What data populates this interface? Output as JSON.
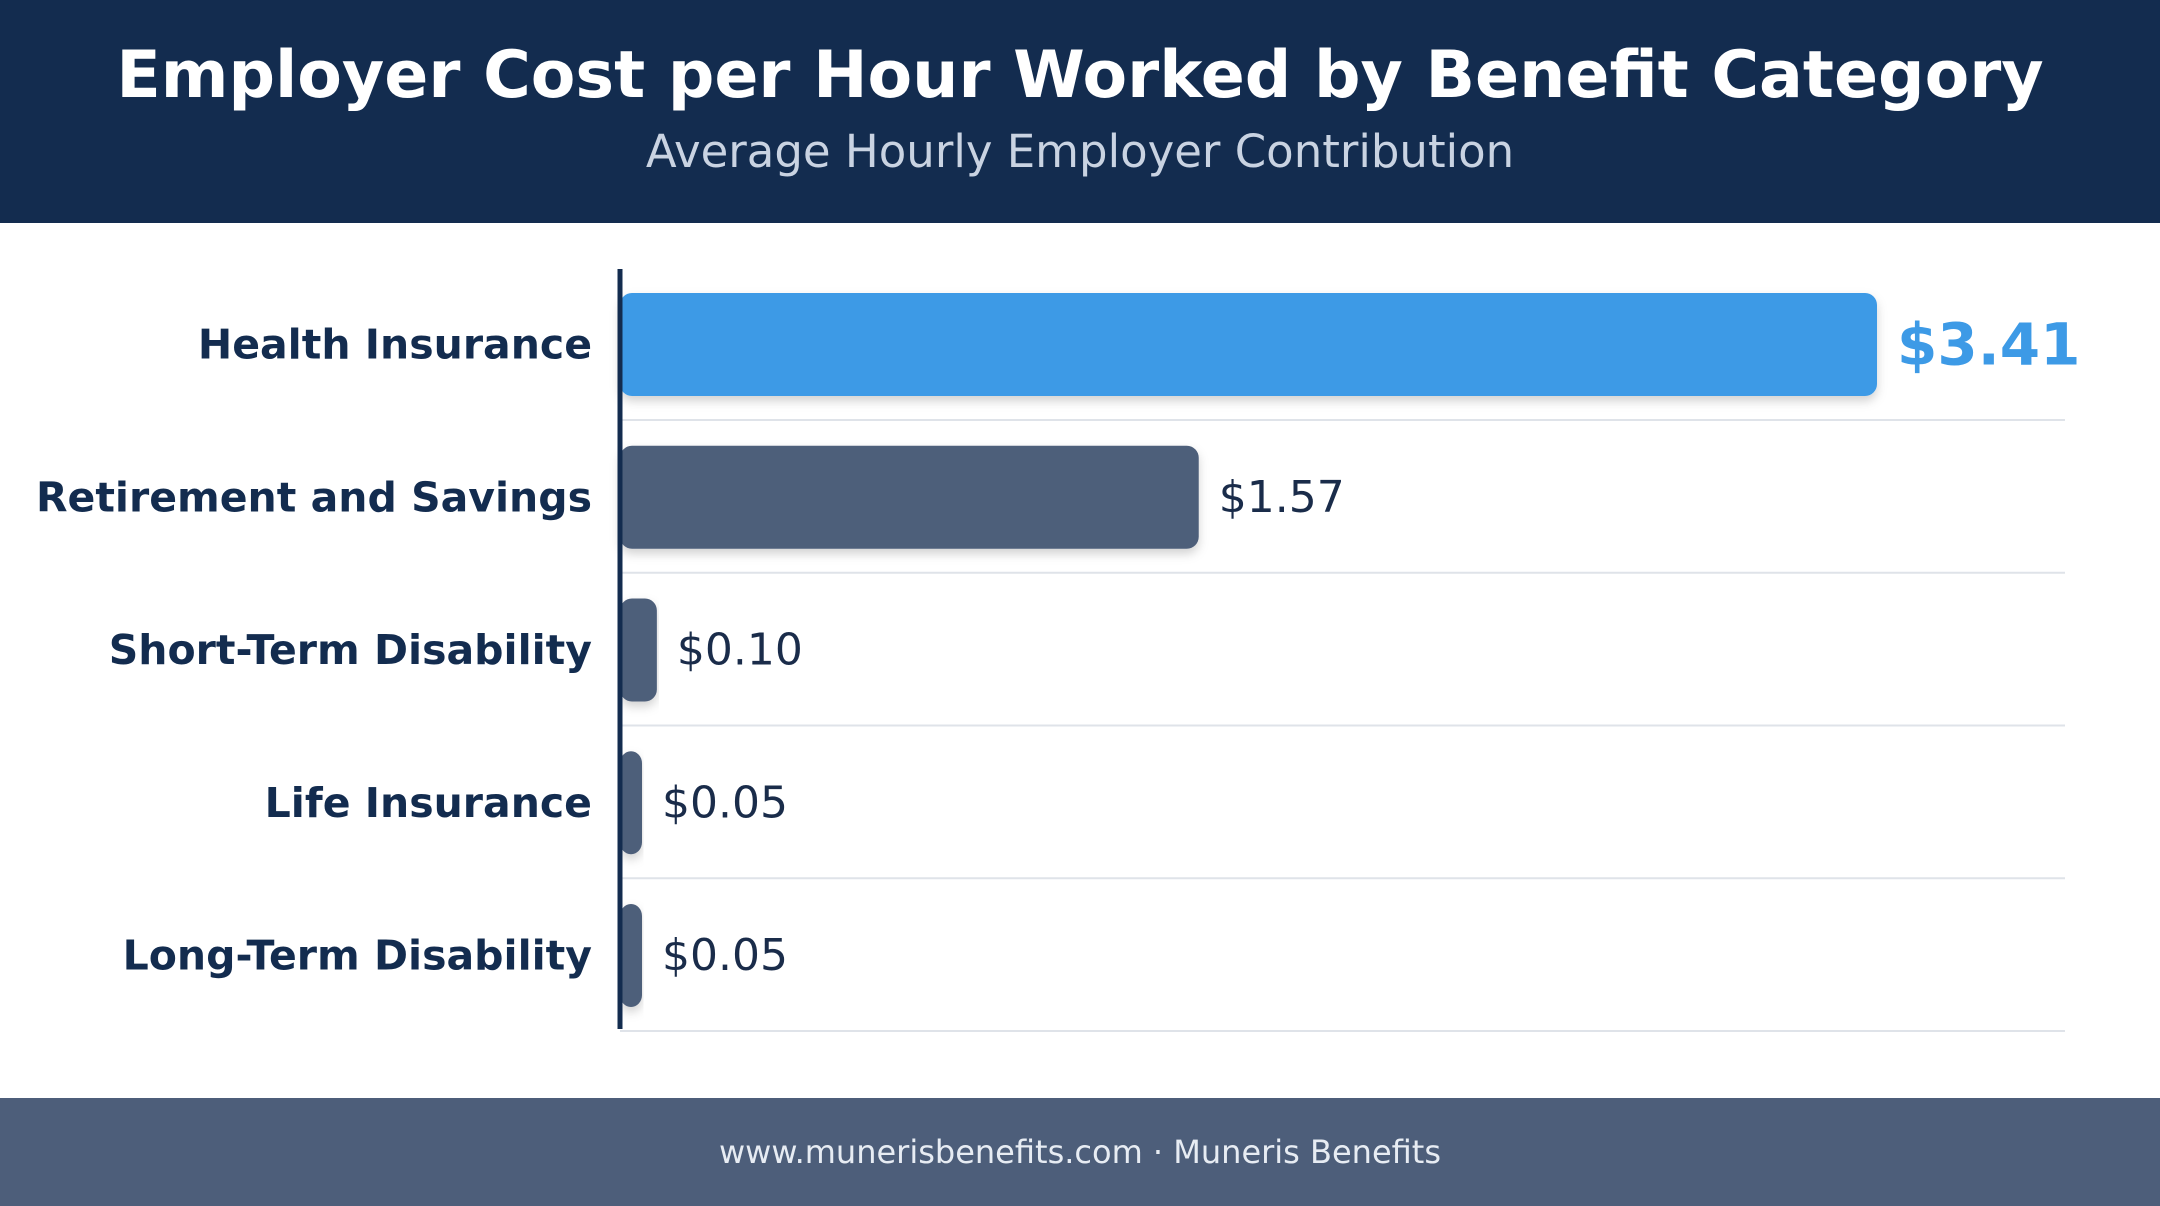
{
  "header": {
    "title": "Employer Cost per Hour Worked by Benefit Category",
    "subtitle": "Average Hourly Employer Contribution"
  },
  "footer": {
    "text": "www.munerisbenefits.com · Muneris Benefits"
  },
  "chart_data": {
    "type": "bar",
    "orientation": "horizontal",
    "title": "Employer Cost per Hour Worked by Benefit Category",
    "subtitle": "Average Hourly Employer Contribution",
    "categories": [
      "Health Insurance",
      "Retirement and Savings",
      "Short-Term Disability",
      "Life Insurance",
      "Long-Term Disability"
    ],
    "values": [
      3.41,
      1.57,
      0.1,
      0.05,
      0.05
    ],
    "value_labels": [
      "$3.41",
      "$1.57",
      "$0.10",
      "$0.05",
      "$0.05"
    ],
    "highlight_index": 0,
    "xlim": [
      0,
      3.41
    ],
    "grid": false,
    "legend": "none",
    "colors": {
      "highlight": "#3d9ae6",
      "bar": "#4d5e7a",
      "axis": "#132c4f",
      "header_bg": "#132c4f",
      "footer_bg": "#4d5e7a"
    }
  }
}
